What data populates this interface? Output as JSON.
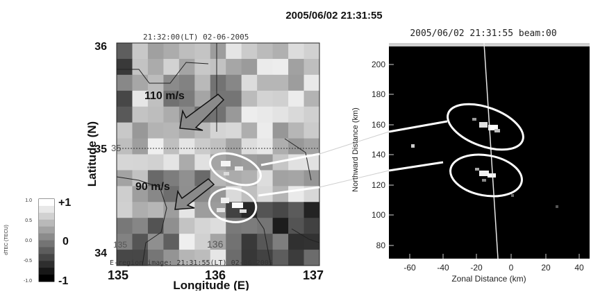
{
  "figure": {
    "title": "2005/06/02 21:31:55"
  },
  "left_panel": {
    "top_label": "21:32:00(LT)  02-06-2005",
    "bottom_label": "E-region image: 21:31:55(LT) 02-06-2005",
    "y_axis_title": "Latitude (N)",
    "x_axis_title": "Longitude (E)",
    "y_ticks": [
      "36",
      "35",
      "34"
    ],
    "x_ticks": [
      "135",
      "136",
      "137"
    ],
    "inner_labels": {
      "lat35": "35",
      "lon135": "135",
      "lon136": "136"
    },
    "arrow_labels": {
      "upper": "110 m/s",
      "lower": "90 m/s"
    }
  },
  "colorbar": {
    "axis_label": "dTEC (TECU)",
    "small_ticks": [
      "1.0",
      "0.5",
      "0.0",
      "-0.5",
      "-1.0"
    ],
    "big_labels": [
      "+1",
      "0",
      "-1"
    ]
  },
  "right_panel": {
    "title": "2005/06/02  21:31:55 beam:00",
    "y_axis_title": "Northward Distance (km)",
    "x_axis_title": "Zonal Distance (km)",
    "y_ticks": [
      "200",
      "180",
      "160",
      "140",
      "120",
      "100",
      "80"
    ],
    "x_ticks": [
      "-60",
      "-40",
      "-20",
      "0",
      "20",
      "40"
    ]
  },
  "colors": {
    "background": "#ffffff",
    "ellipse": "#ffffff",
    "radar_background": "#000000",
    "arrow_fill": "#8a8a8a"
  }
}
